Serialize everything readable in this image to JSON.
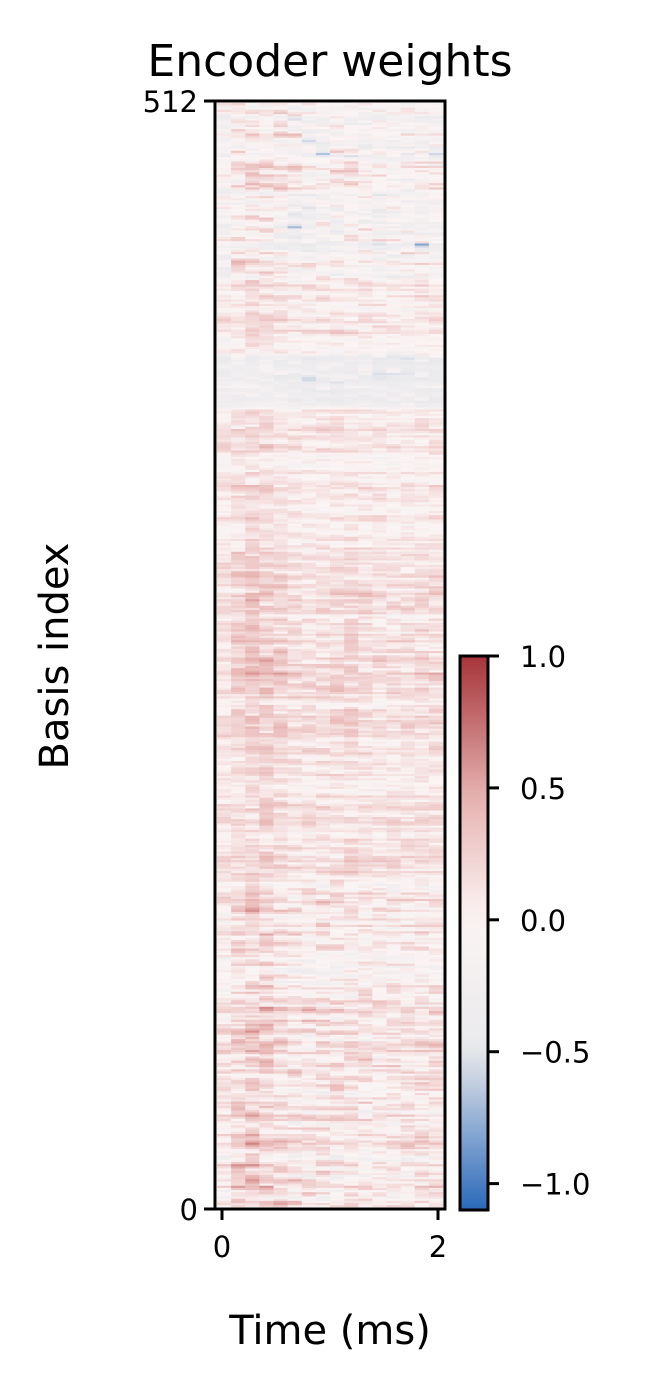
{
  "chart_data": {
    "type": "heatmap",
    "title": "Encoder weights",
    "xlabel": "Time (ms)",
    "ylabel": "Basis index",
    "xlim": [
      0,
      2
    ],
    "ylim": [
      0,
      512
    ],
    "xticks": [
      0,
      2
    ],
    "xtick_labels": [
      "0",
      "2"
    ],
    "yticks": [
      0,
      512
    ],
    "ytick_labels": [
      "0",
      "512"
    ],
    "n_rows": 512,
    "n_cols": 16,
    "colormap": {
      "name": "vlag",
      "stops": [
        "#2a69b9",
        "#e9e9ec",
        "#fbf4f4",
        "#e7b5b3",
        "#a6343a"
      ]
    },
    "value_range": [
      -1.1,
      1.0
    ],
    "colorbar": {
      "ticks": [
        1.0,
        0.5,
        0.0,
        -0.5,
        -1.0
      ],
      "tick_labels": [
        "1.0",
        "0.5",
        "0.0",
        "−0.5",
        "−1.0"
      ]
    },
    "bands": [
      {
        "rows": [
          0,
          25
        ],
        "value": 0.0,
        "variance": 0.9
      },
      {
        "rows": [
          25,
          150
        ],
        "value": 0.05,
        "variance": 0.75
      },
      {
        "rows": [
          150,
          215
        ],
        "value": 0.15,
        "variance": 0.45
      },
      {
        "rows": [
          215,
          305
        ],
        "value": 0.2,
        "variance": 0.5
      },
      {
        "rows": [
          305,
          370
        ],
        "value": 0.1,
        "variance": 0.45
      },
      {
        "rows": [
          370,
          395
        ],
        "value": -0.45,
        "variance": 0.25
      },
      {
        "rows": [
          395,
          430
        ],
        "value": 0.05,
        "variance": 0.5
      },
      {
        "rows": [
          430,
          512
        ],
        "value": -0.15,
        "variance": 0.9
      }
    ]
  }
}
